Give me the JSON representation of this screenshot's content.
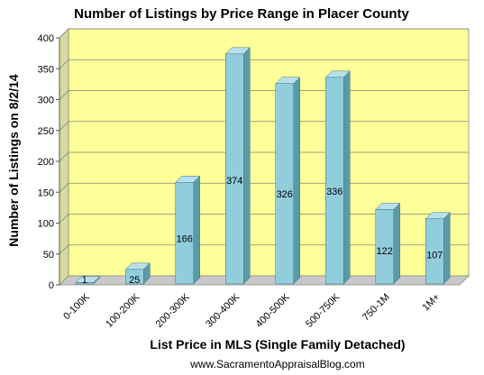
{
  "chart_data": {
    "type": "bar",
    "title": "Number of Listings by Price Range in Placer County",
    "xlabel": "List Price in MLS (Single Family Detached)",
    "ylabel": "Number of Listings on 8/2/14",
    "categories": [
      "0-100K",
      "100-200K",
      "200-300K",
      "300-400K",
      "400-500K",
      "500-750K",
      "750-1M",
      "1M+"
    ],
    "values": [
      1,
      25,
      166,
      374,
      326,
      336,
      122,
      107
    ],
    "ylim": [
      0,
      400
    ],
    "yticks": [
      0,
      50,
      100,
      150,
      200,
      250,
      300,
      350,
      400
    ],
    "grid": true,
    "legend": "none",
    "style": "3d-column",
    "colors": {
      "bar_front": "#92cddc",
      "bar_side": "#5b9aa8",
      "bar_top": "#b7e0ea",
      "plot_back": "#ffff99",
      "plot_side": "#d9d9a0",
      "plot_floor": "#c8c8c8",
      "grid": "#808080"
    }
  },
  "footer": {
    "source": "www.SacramentoAppraisalBlog.com"
  }
}
